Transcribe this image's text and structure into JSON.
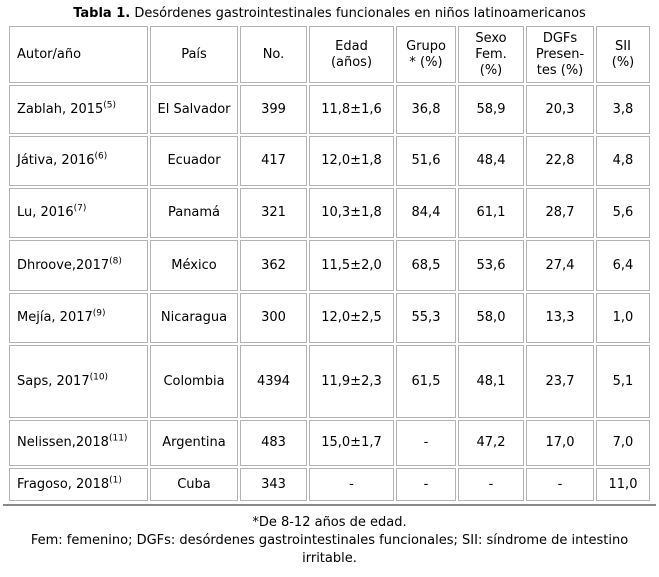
{
  "colors": {
    "text": "#000000",
    "cell_border": "#b3b3b3",
    "bottom_rule": "#8a8a8a",
    "background": "#ffffff"
  },
  "chart_data": {
    "type": "table",
    "title": {
      "label": "Tabla 1.",
      "text": "Desórdenes gastrointestinales funcionales en niños latinoamericanos"
    },
    "columns": [
      {
        "label": "Autor/año"
      },
      {
        "label": "País"
      },
      {
        "label": "No."
      },
      {
        "label": "Edad\n(años)"
      },
      {
        "label": "Grupo\n* (%)"
      },
      {
        "label": "Sexo\nFem.\n(%)"
      },
      {
        "label": "DGFs\nPresen-\ntes (%)"
      },
      {
        "label": "SII\n(%)"
      }
    ],
    "rows": [
      {
        "autor": "Zablah, 2015",
        "ref": "(5)",
        "cells": [
          "El Salvador",
          "399",
          "11,8±1,6",
          "36,8",
          "58,9",
          "20,3",
          "3,8"
        ]
      },
      {
        "autor": "Játiva, 2016",
        "ref": "(6)",
        "cells": [
          "Ecuador",
          "417",
          "12,0±1,8",
          "51,6",
          "48,4",
          "22,8",
          "4,8"
        ]
      },
      {
        "autor": "Lu, 2016",
        "ref": "(7)",
        "cells": [
          "Panamá",
          "321",
          "10,3±1,8",
          "84,4",
          "61,1",
          "28,7",
          "5,6"
        ]
      },
      {
        "autor": "Dhroove,2017",
        "ref": "(8)",
        "cells": [
          "México",
          "362",
          "11,5±2,0",
          "68,5",
          "53,6",
          "27,4",
          "6,4"
        ]
      },
      {
        "autor": "Mejía, 2017",
        "ref": "(9)",
        "cells": [
          "Nicaragua",
          "300",
          "12,0±2,5",
          "55,3",
          "58,0",
          "13,3",
          "1,0"
        ]
      },
      {
        "autor": "Saps, 2017",
        "ref": "(10)",
        "cells": [
          "Colombia",
          "4394",
          "11,9±2,3",
          "61,5",
          "48,1",
          "23,7",
          "5,1"
        ]
      },
      {
        "autor": "Nelissen,2018",
        "ref": "(11)",
        "cells": [
          "Argentina",
          "483",
          "15,0±1,7",
          "-",
          "47,2",
          "17,0",
          "7,0"
        ]
      },
      {
        "autor": "Fragoso, 2018",
        "ref": "(1)",
        "cells": [
          "Cuba",
          "343",
          "-",
          "-",
          "-",
          "-",
          "11,0"
        ]
      }
    ],
    "footnotes": [
      "*De 8-12 años de edad.",
      "Fem: femenino; DGFs: desórdenes gastrointestinales funcionales; SII: síndrome de intestino irritable."
    ]
  }
}
